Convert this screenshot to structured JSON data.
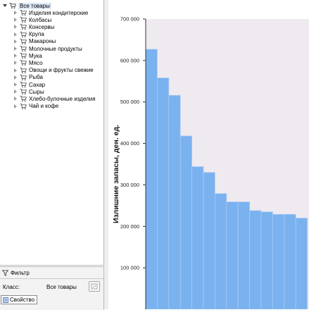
{
  "tree": {
    "root_label": "Все товары",
    "items": [
      {
        "label": "Изделия кондитерские"
      },
      {
        "label": "Колбасы"
      },
      {
        "label": "Консервы"
      },
      {
        "label": "Крупа"
      },
      {
        "label": "Макароны"
      },
      {
        "label": "Молочные продукты"
      },
      {
        "label": "Мука"
      },
      {
        "label": "Мясо"
      },
      {
        "label": "Овощи и фрукты свежие"
      },
      {
        "label": "Рыба"
      },
      {
        "label": "Сахар"
      },
      {
        "label": "Сыры"
      },
      {
        "label": "Хлебо-булочные изделия"
      },
      {
        "label": "Чай и кофе"
      }
    ]
  },
  "filter": {
    "title": "Фильтр",
    "class_label": "Класс:",
    "class_value": "Все товары",
    "property_tab": "Свойство"
  },
  "icons": {
    "tree_item": "shopping-cart-icon",
    "filter": "funnel-icon",
    "picker": "picker-icon",
    "property": "property-icon"
  },
  "colors": {
    "bar_fill": "#7ab1ef",
    "bar_edge": "#a9cbf3",
    "plot_background": "#efeaef",
    "axis": "#333333"
  },
  "chart_data": {
    "type": "bar",
    "ylabel": "Излишние запасы, ден. ед.",
    "ylim": [
      0,
      700000
    ],
    "yticks": [
      100000,
      200000,
      300000,
      400000,
      500000,
      600000,
      700000
    ],
    "ytick_labels": [
      "100 000",
      "200 000",
      "300 000",
      "400 000",
      "500 000",
      "600 000",
      "700 000"
    ],
    "values": [
      627000,
      558000,
      516000,
      418000,
      344000,
      330000,
      279000,
      259000,
      259000,
      238000,
      235000,
      229000,
      229000,
      220000
    ]
  }
}
